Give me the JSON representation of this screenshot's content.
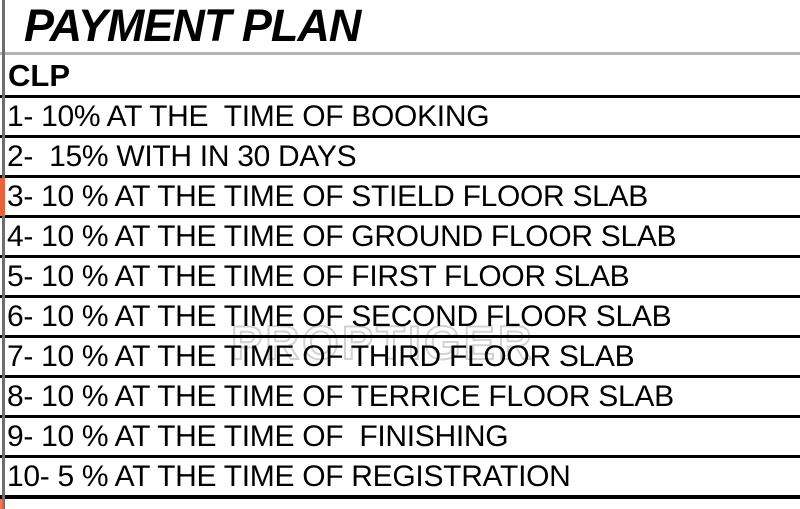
{
  "document": {
    "title": "PAYMENT PLAN",
    "plan_type": "CLP",
    "watermark": "PROPTIGER"
  },
  "payment_rows": [
    "1- 10% AT THE  TIME OF BOOKING",
    "2-  15% WITH IN 30 DAYS",
    "3- 10 % AT THE TIME OF STIELD FLOOR SLAB",
    "4- 10 % AT THE TIME OF GROUND FLOOR SLAB",
    "5- 10 % AT THE TIME OF FIRST FLOOR SLAB",
    "6- 10 % AT THE TIME OF SECOND FLOOR SLAB",
    "7- 10 % AT THE TIME OF THIRD FLOOR SLAB",
    "8- 10 % AT THE TIME OF TERRICE FLOOR SLAB",
    "9- 10 % AT THE TIME OF  FINISHING",
    "10- 5 % AT THE TIME OF REGISTRATION"
  ],
  "colors": {
    "row_change_marker": "#e8633c",
    "grid_line_black": "#000000",
    "title_separator_gray": "#b3b3b3",
    "left_border_gray": "#6e6e6e",
    "watermark_gray": "#d2d2d2"
  }
}
